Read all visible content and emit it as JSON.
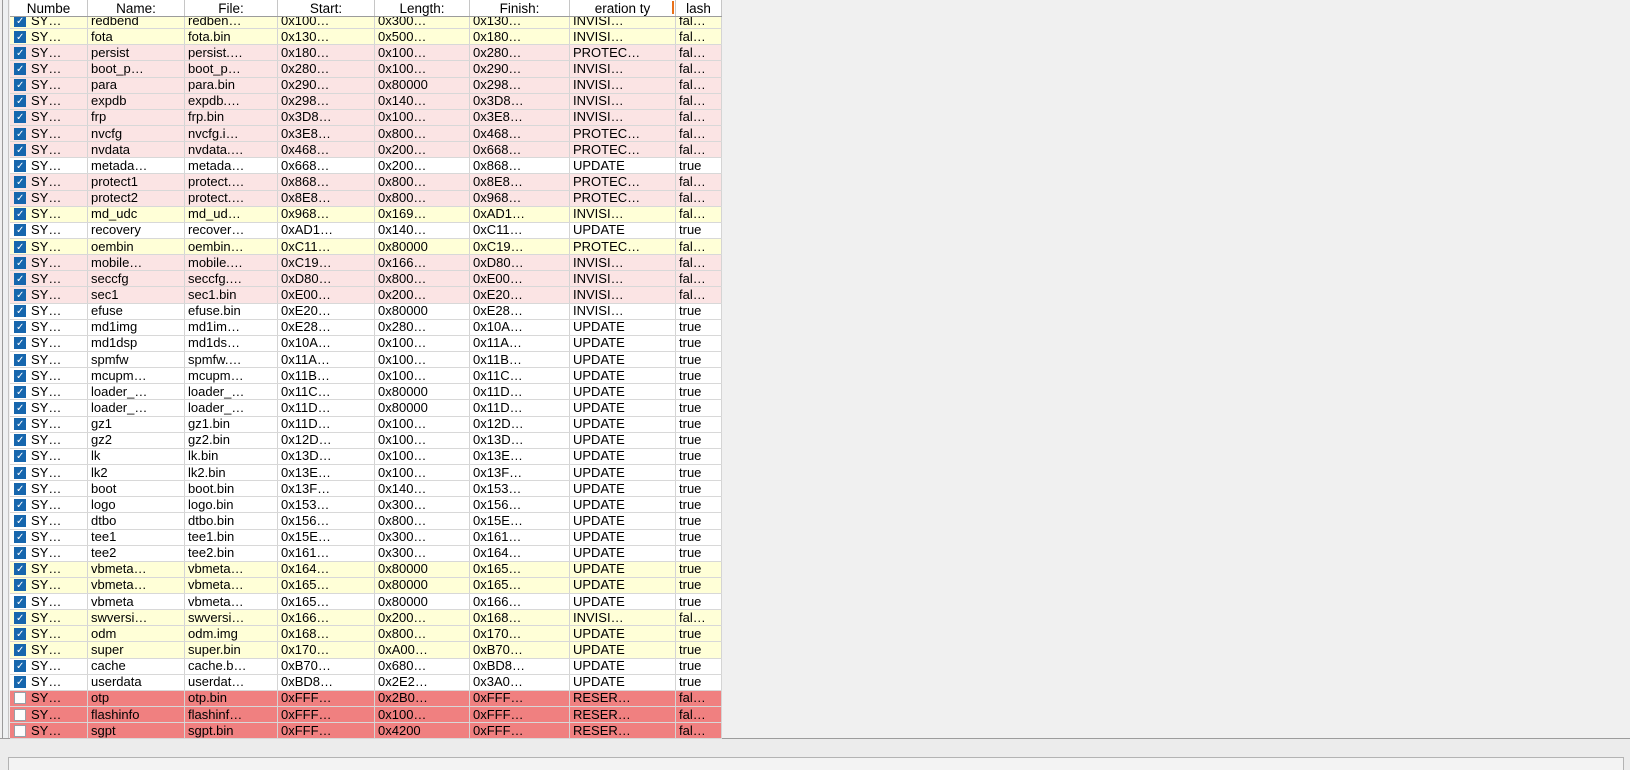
{
  "table": {
    "header": {
      "labels": [
        "Numbe",
        "Name:",
        "File:",
        "Start:",
        "Length:",
        "Finish:",
        "eration ty",
        "lash"
      ],
      "sort_indicator_column": 6
    },
    "rows": [
      {
        "checked": true,
        "color": "yellow",
        "cells": [
          "SY…",
          "redbend",
          "redben…",
          "0x100…",
          "0x300…",
          "0x130…",
          "INVISI…",
          "fal…"
        ]
      },
      {
        "checked": true,
        "color": "yellow",
        "cells": [
          "SY…",
          "fota",
          "fota.bin",
          "0x130…",
          "0x500…",
          "0x180…",
          "INVISI…",
          "fal…"
        ]
      },
      {
        "checked": true,
        "color": "pink",
        "cells": [
          "SY…",
          "persist",
          "persist.…",
          "0x180…",
          "0x100…",
          "0x280…",
          "PROTEC…",
          "fal…"
        ]
      },
      {
        "checked": true,
        "color": "pink",
        "cells": [
          "SY…",
          "boot_p…",
          "boot_p…",
          "0x280…",
          "0x100…",
          "0x290…",
          "INVISI…",
          "fal…"
        ]
      },
      {
        "checked": true,
        "color": "pink",
        "cells": [
          "SY…",
          "para",
          "para.bin",
          "0x290…",
          "0x80000",
          "0x298…",
          "INVISI…",
          "fal…"
        ]
      },
      {
        "checked": true,
        "color": "pink",
        "cells": [
          "SY…",
          "expdb",
          "expdb.…",
          "0x298…",
          "0x140…",
          "0x3D8…",
          "INVISI…",
          "fal…"
        ]
      },
      {
        "checked": true,
        "color": "pink",
        "cells": [
          "SY…",
          "frp",
          "frp.bin",
          "0x3D8…",
          "0x100…",
          "0x3E8…",
          "INVISI…",
          "fal…"
        ]
      },
      {
        "checked": true,
        "color": "pink",
        "cells": [
          "SY…",
          "nvcfg",
          "nvcfg.i…",
          "0x3E8…",
          "0x800…",
          "0x468…",
          "PROTEC…",
          "fal…"
        ]
      },
      {
        "checked": true,
        "color": "pink",
        "cells": [
          "SY…",
          "nvdata",
          "nvdata.…",
          "0x468…",
          "0x200…",
          "0x668…",
          "PROTEC…",
          "fal…"
        ]
      },
      {
        "checked": true,
        "color": "white",
        "cells": [
          "SY…",
          "metada…",
          "metada…",
          "0x668…",
          "0x200…",
          "0x868…",
          "UPDATE",
          "true"
        ]
      },
      {
        "checked": true,
        "color": "pink",
        "cells": [
          "SY…",
          "protect1",
          "protect.…",
          "0x868…",
          "0x800…",
          "0x8E8…",
          "PROTEC…",
          "fal…"
        ]
      },
      {
        "checked": true,
        "color": "pink",
        "cells": [
          "SY…",
          "protect2",
          "protect.…",
          "0x8E8…",
          "0x800…",
          "0x968…",
          "PROTEC…",
          "fal…"
        ]
      },
      {
        "checked": true,
        "color": "yellow",
        "cells": [
          "SY…",
          "md_udc",
          "md_ud…",
          "0x968…",
          "0x169…",
          "0xAD1…",
          "INVISI…",
          "fal…"
        ]
      },
      {
        "checked": true,
        "color": "white",
        "cells": [
          "SY…",
          "recovery",
          "recover…",
          "0xAD1…",
          "0x140…",
          "0xC11…",
          "UPDATE",
          "true"
        ]
      },
      {
        "checked": true,
        "color": "yellow",
        "cells": [
          "SY…",
          "oembin",
          "oembin…",
          "0xC11…",
          "0x80000",
          "0xC19…",
          "PROTEC…",
          "fal…"
        ]
      },
      {
        "checked": true,
        "color": "pink",
        "cells": [
          "SY…",
          "mobile…",
          "mobile.…",
          "0xC19…",
          "0x166…",
          "0xD80…",
          "INVISI…",
          "fal…"
        ]
      },
      {
        "checked": true,
        "color": "pink",
        "cells": [
          "SY…",
          "seccfg",
          "seccfg.…",
          "0xD80…",
          "0x800…",
          "0xE00…",
          "INVISI…",
          "fal…"
        ]
      },
      {
        "checked": true,
        "color": "pink",
        "cells": [
          "SY…",
          "sec1",
          "sec1.bin",
          "0xE00…",
          "0x200…",
          "0xE20…",
          "INVISI…",
          "fal…"
        ]
      },
      {
        "checked": true,
        "color": "white",
        "cells": [
          "SY…",
          "efuse",
          "efuse.bin",
          "0xE20…",
          "0x80000",
          "0xE28…",
          "INVISI…",
          "true"
        ]
      },
      {
        "checked": true,
        "color": "white",
        "cells": [
          "SY…",
          "md1img",
          "md1im…",
          "0xE28…",
          "0x280…",
          "0x10A…",
          "UPDATE",
          "true"
        ]
      },
      {
        "checked": true,
        "color": "white",
        "cells": [
          "SY…",
          "md1dsp",
          "md1ds…",
          "0x10A…",
          "0x100…",
          "0x11A…",
          "UPDATE",
          "true"
        ]
      },
      {
        "checked": true,
        "color": "white",
        "cells": [
          "SY…",
          "spmfw",
          "spmfw.…",
          "0x11A…",
          "0x100…",
          "0x11B…",
          "UPDATE",
          "true"
        ]
      },
      {
        "checked": true,
        "color": "white",
        "cells": [
          "SY…",
          "mcupm…",
          "mcupm…",
          "0x11B…",
          "0x100…",
          "0x11C…",
          "UPDATE",
          "true"
        ]
      },
      {
        "checked": true,
        "color": "white",
        "cells": [
          "SY…",
          "loader_…",
          "loader_…",
          "0x11C…",
          "0x80000",
          "0x11D…",
          "UPDATE",
          "true"
        ]
      },
      {
        "checked": true,
        "color": "white",
        "cells": [
          "SY…",
          "loader_…",
          "loader_…",
          "0x11D…",
          "0x80000",
          "0x11D…",
          "UPDATE",
          "true"
        ]
      },
      {
        "checked": true,
        "color": "white",
        "cells": [
          "SY…",
          "gz1",
          "gz1.bin",
          "0x11D…",
          "0x100…",
          "0x12D…",
          "UPDATE",
          "true"
        ]
      },
      {
        "checked": true,
        "color": "white",
        "cells": [
          "SY…",
          "gz2",
          "gz2.bin",
          "0x12D…",
          "0x100…",
          "0x13D…",
          "UPDATE",
          "true"
        ]
      },
      {
        "checked": true,
        "color": "white",
        "cells": [
          "SY…",
          "lk",
          "lk.bin",
          "0x13D…",
          "0x100…",
          "0x13E…",
          "UPDATE",
          "true"
        ]
      },
      {
        "checked": true,
        "color": "white",
        "cells": [
          "SY…",
          "lk2",
          "lk2.bin",
          "0x13E…",
          "0x100…",
          "0x13F…",
          "UPDATE",
          "true"
        ]
      },
      {
        "checked": true,
        "color": "white",
        "cells": [
          "SY…",
          "boot",
          "boot.bin",
          "0x13F…",
          "0x140…",
          "0x153…",
          "UPDATE",
          "true"
        ]
      },
      {
        "checked": true,
        "color": "white",
        "cells": [
          "SY…",
          "logo",
          "logo.bin",
          "0x153…",
          "0x300…",
          "0x156…",
          "UPDATE",
          "true"
        ]
      },
      {
        "checked": true,
        "color": "white",
        "cells": [
          "SY…",
          "dtbo",
          "dtbo.bin",
          "0x156…",
          "0x800…",
          "0x15E…",
          "UPDATE",
          "true"
        ]
      },
      {
        "checked": true,
        "color": "white",
        "cells": [
          "SY…",
          "tee1",
          "tee1.bin",
          "0x15E…",
          "0x300…",
          "0x161…",
          "UPDATE",
          "true"
        ]
      },
      {
        "checked": true,
        "color": "white",
        "cells": [
          "SY…",
          "tee2",
          "tee2.bin",
          "0x161…",
          "0x300…",
          "0x164…",
          "UPDATE",
          "true"
        ]
      },
      {
        "checked": true,
        "color": "yellow",
        "cells": [
          "SY…",
          "vbmeta…",
          "vbmeta…",
          "0x164…",
          "0x80000",
          "0x165…",
          "UPDATE",
          "true"
        ]
      },
      {
        "checked": true,
        "color": "yellow",
        "cells": [
          "SY…",
          "vbmeta…",
          "vbmeta…",
          "0x165…",
          "0x80000",
          "0x165…",
          "UPDATE",
          "true"
        ]
      },
      {
        "checked": true,
        "color": "white",
        "cells": [
          "SY…",
          "vbmeta",
          "vbmeta…",
          "0x165…",
          "0x80000",
          "0x166…",
          "UPDATE",
          "true"
        ]
      },
      {
        "checked": true,
        "color": "yellow",
        "cells": [
          "SY…",
          "swversi…",
          "swversi…",
          "0x166…",
          "0x200…",
          "0x168…",
          "INVISI…",
          "fal…"
        ]
      },
      {
        "checked": true,
        "color": "yellow",
        "cells": [
          "SY…",
          "odm",
          "odm.img",
          "0x168…",
          "0x800…",
          "0x170…",
          "UPDATE",
          "true"
        ]
      },
      {
        "checked": true,
        "color": "yellow",
        "cells": [
          "SY…",
          "super",
          "super.bin",
          "0x170…",
          "0xA00…",
          "0xB70…",
          "UPDATE",
          "true"
        ]
      },
      {
        "checked": true,
        "color": "white",
        "cells": [
          "SY…",
          "cache",
          "cache.b…",
          "0xB70…",
          "0x680…",
          "0xBD8…",
          "UPDATE",
          "true"
        ]
      },
      {
        "checked": true,
        "color": "white",
        "cells": [
          "SY…",
          "userdata",
          "userdat…",
          "0xBD8…",
          "0x2E2…",
          "0x3A0…",
          "UPDATE",
          "true"
        ]
      },
      {
        "checked": false,
        "color": "red",
        "cells": [
          "SY…",
          "otp",
          "otp.bin",
          "0xFFF…",
          "0x2B0…",
          "0xFFF…",
          "RESER…",
          "fal…"
        ]
      },
      {
        "checked": false,
        "color": "red",
        "cells": [
          "SY…",
          "flashinfo",
          "flashinf…",
          "0xFFF…",
          "0x100…",
          "0xFFF…",
          "RESER…",
          "fal…"
        ]
      },
      {
        "checked": false,
        "color": "red",
        "cells": [
          "SY…",
          "sgpt",
          "sgpt.bin",
          "0xFFF…",
          "0x4200",
          "0xFFF…",
          "RESER…",
          "fal…"
        ]
      }
    ]
  },
  "colors": {
    "row_yellow": "#ffffd7",
    "row_pink": "#fbe4e4",
    "row_red": "#f08080",
    "row_white": "#ffffff",
    "checkbox_blue": "#1666ad",
    "sort_indicator": "#e8701a"
  }
}
